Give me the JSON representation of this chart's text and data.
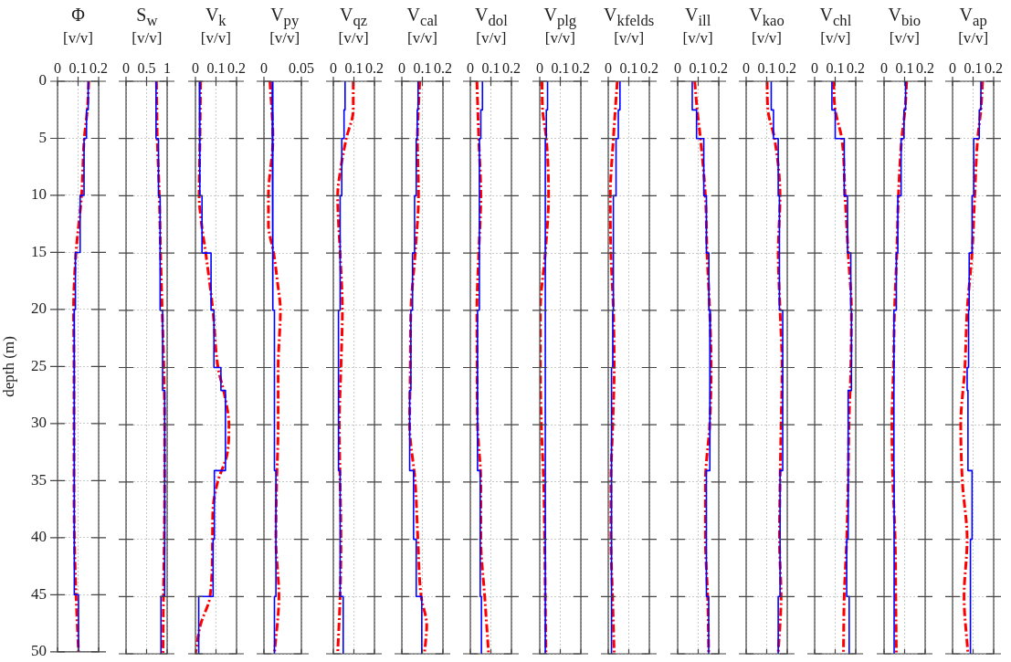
{
  "chart_data": [
    {
      "type": "line",
      "title": "Φ",
      "xlabel": "[v/v]",
      "ylabel": "depth (m)",
      "xlim": [
        0,
        0.2
      ],
      "xticks": [
        0,
        0.1,
        0.2
      ],
      "ylim": [
        50,
        0
      ],
      "yticks": [
        0,
        5,
        10,
        15,
        20,
        25,
        30,
        35,
        40,
        45,
        50
      ],
      "grid": true,
      "series": [
        {
          "type": "line",
          "color": "#0000ff",
          "line_style": "solid",
          "x": [
            0.149,
            0.149,
            0.141,
            0.141,
            0.129,
            0.129,
            0.11,
            0.11,
            0.087,
            0.087,
            0.081,
            0.081,
            0.081,
            0.081,
            0.081,
            0.081,
            0.081,
            0.081,
            0.084,
            0.084,
            0.102,
            0.102
          ],
          "values": [
            0,
            2.5,
            2.5,
            5,
            5,
            10,
            10,
            15,
            15,
            20,
            20,
            25,
            25,
            27,
            27,
            34,
            34,
            40,
            40,
            45,
            45,
            50
          ]
        },
        {
          "type": "line",
          "color": "#ff0000",
          "line_style": "dashed",
          "x": [
            0.152,
            0.145,
            0.13,
            0.117,
            0.09,
            0.078,
            0.08,
            0.08,
            0.08,
            0.082,
            0.09,
            0.102
          ],
          "values": [
            0,
            2.5,
            5,
            10,
            15,
            20,
            25,
            30,
            35,
            40,
            45,
            50
          ]
        }
      ]
    },
    {
      "type": "line",
      "title": "S$_{w}$",
      "xlabel": "[v/v]",
      "xlim": [
        0,
        1
      ],
      "xticks": [
        0,
        0.5,
        1
      ],
      "ylim": [
        50,
        0
      ],
      "yticks": [
        0,
        5,
        10,
        15,
        20,
        25,
        30,
        35,
        40,
        45,
        50
      ],
      "grid": true,
      "tick_labels": "x",
      "series": [
        {
          "type": "line",
          "color": "#0000ff",
          "line_style": "solid",
          "x": [
            0.73,
            0.73,
            0.73,
            0.73,
            0.79,
            0.79,
            0.83,
            0.83,
            0.83,
            0.83,
            0.89,
            0.89,
            0.89,
            0.89,
            0.94,
            0.94,
            0.94,
            0.94,
            0.94,
            0.94,
            0.85,
            0.85
          ],
          "values": [
            0,
            2.5,
            2.5,
            5,
            5,
            10,
            10,
            15,
            15,
            20,
            20,
            25,
            25,
            27,
            27,
            34,
            34,
            40,
            40,
            45,
            45,
            50
          ]
        },
        {
          "type": "line",
          "color": "#ff0000",
          "line_style": "dashed",
          "x": [
            0.74,
            0.75,
            0.76,
            0.81,
            0.84,
            0.88,
            0.92,
            0.94,
            0.94,
            0.93,
            0.91,
            0.9
          ],
          "values": [
            0,
            2.5,
            5,
            10,
            15,
            20,
            25,
            30,
            35,
            40,
            45,
            50
          ]
        }
      ]
    },
    {
      "type": "line",
      "title": "V$_{k}$",
      "xlabel": "[v/v]",
      "xlim": [
        0,
        0.2
      ],
      "xticks": [
        0,
        0.1,
        0.2
      ],
      "ylim": [
        50,
        0
      ],
      "yticks": [
        0,
        5,
        10,
        15,
        20,
        25,
        30,
        35,
        40,
        45,
        50
      ],
      "grid": true,
      "tick_labels": "x",
      "series": [
        {
          "type": "line",
          "color": "#0000ff",
          "line_style": "solid",
          "x": [
            0.019,
            0.019,
            0.022,
            0.022,
            0.022,
            0.022,
            0.032,
            0.032,
            0.076,
            0.076,
            0.09,
            0.09,
            0.124,
            0.124,
            0.146,
            0.146,
            0.092,
            0.092,
            0.086,
            0.086,
            0.016,
            0.016
          ],
          "values": [
            0,
            2.5,
            2.5,
            5,
            5,
            10,
            10,
            15,
            15,
            20,
            20,
            25,
            25,
            27,
            27,
            34,
            34,
            40,
            40,
            45,
            45,
            50
          ]
        },
        {
          "type": "line",
          "color": "#ff0000",
          "line_style": "dashed",
          "x": [
            0.025,
            0.022,
            0.018,
            0.03,
            0.05,
            0.085,
            0.11,
            0.143,
            0.163,
            0.155,
            0.108,
            0.085,
            0.083,
            0.071,
            0.024,
            0.0
          ],
          "values": [
            0,
            5,
            10,
            12.5,
            15,
            20,
            25,
            27.5,
            30,
            32.5,
            35,
            37.5,
            40,
            45,
            47.5,
            50
          ]
        }
      ]
    },
    {
      "type": "line",
      "title": "V$_{py}$",
      "xlabel": "[v/v]",
      "xlim": [
        0,
        0.05
      ],
      "xticks": [
        0,
        0.05
      ],
      "ylim": [
        50,
        0
      ],
      "yticks": [
        0,
        5,
        10,
        15,
        20,
        25,
        30,
        35,
        40,
        45,
        50
      ],
      "grid": true,
      "tick_labels": "x",
      "series": [
        {
          "type": "line",
          "color": "#0000ff",
          "line_style": "solid",
          "x": [
            0.011,
            0.011,
            0.012,
            0.012,
            0.012,
            0.012,
            0.012,
            0.012,
            0.012,
            0.012,
            0.014,
            0.014,
            0.014,
            0.014,
            0.014,
            0.014,
            0.016,
            0.016,
            0.016,
            0.016,
            0.014,
            0.014
          ],
          "values": [
            0,
            2.5,
            2.5,
            5,
            5,
            10,
            10,
            15,
            15,
            20,
            20,
            25,
            25,
            27,
            27,
            34,
            34,
            40,
            40,
            45,
            45,
            50
          ]
        },
        {
          "type": "line",
          "color": "#ff0000",
          "line_style": "dashed",
          "x": [
            0.008,
            0.012,
            0.006,
            0.006,
            0.013,
            0.018,
            0.022,
            0.019,
            0.019,
            0.017,
            0.016,
            0.02,
            0.014
          ],
          "values": [
            0,
            5,
            10,
            12.5,
            15,
            17.5,
            20,
            25,
            30,
            35,
            40,
            45,
            50
          ]
        }
      ]
    },
    {
      "type": "line",
      "title": "V$_{qz}$",
      "xlabel": "[v/v]",
      "xlim": [
        0,
        0.2
      ],
      "xticks": [
        0,
        0.1,
        0.2
      ],
      "ylim": [
        50,
        0
      ],
      "yticks": [
        0,
        5,
        10,
        15,
        20,
        25,
        30,
        35,
        40,
        45,
        50
      ],
      "grid": true,
      "tick_labels": "x",
      "series": [
        {
          "type": "line",
          "color": "#0000ff",
          "line_style": "solid",
          "x": [
            0.057,
            0.057,
            0.052,
            0.052,
            0.041,
            0.041,
            0.033,
            0.033,
            0.033,
            0.033,
            0.025,
            0.025,
            0.025,
            0.025,
            0.025,
            0.025,
            0.033,
            0.033,
            0.033,
            0.033,
            0.048,
            0.048
          ],
          "values": [
            0,
            2.5,
            2.5,
            5,
            5,
            10,
            10,
            15,
            15,
            20,
            20,
            25,
            25,
            27,
            27,
            34,
            34,
            40,
            40,
            45,
            45,
            50
          ]
        },
        {
          "type": "line",
          "color": "#ff0000",
          "line_style": "dashed",
          "x": [
            0.097,
            0.097,
            0.063,
            0.037,
            0.021,
            0.033,
            0.044,
            0.037,
            0.029,
            0.033,
            0.037,
            0.033,
            0.021
          ],
          "values": [
            0,
            2.5,
            5,
            7.5,
            10,
            15,
            20,
            25,
            30,
            35,
            40,
            45,
            50
          ]
        }
      ]
    },
    {
      "type": "line",
      "title": "V$_{cal}$",
      "xlabel": "[v/v]",
      "xlim": [
        0,
        0.2
      ],
      "xticks": [
        0,
        0.1,
        0.2
      ],
      "ylim": [
        50,
        0
      ],
      "yticks": [
        0,
        5,
        10,
        15,
        20,
        25,
        30,
        35,
        40,
        45,
        50
      ],
      "grid": true,
      "tick_labels": "x",
      "series": [
        {
          "type": "line",
          "color": "#0000ff",
          "line_style": "solid",
          "x": [
            0.079,
            0.079,
            0.075,
            0.075,
            0.07,
            0.07,
            0.062,
            0.062,
            0.052,
            0.052,
            0.044,
            0.044,
            0.038,
            0.038,
            0.057,
            0.057,
            0.07,
            0.07,
            0.097,
            0.097
          ],
          "values": [
            0,
            2.5,
            2.5,
            5,
            5,
            10,
            10,
            15,
            15,
            20,
            20,
            27,
            27,
            34,
            34,
            40,
            40,
            45,
            45,
            50
          ]
        },
        {
          "type": "line",
          "color": "#ff0000",
          "line_style": "dashed",
          "x": [
            0.087,
            0.076,
            0.081,
            0.065,
            0.044,
            0.041,
            0.038,
            0.065,
            0.078,
            0.094,
            0.121,
            0.11
          ],
          "values": [
            0,
            5,
            10,
            15,
            20,
            25,
            30,
            35,
            40,
            45,
            47.5,
            50
          ]
        }
      ]
    },
    {
      "type": "line",
      "title": "V$_{dol}$",
      "xlabel": "[v/v]",
      "xlim": [
        0,
        0.2
      ],
      "xticks": [
        0,
        0.1,
        0.2
      ],
      "ylim": [
        50,
        0
      ],
      "yticks": [
        0,
        5,
        10,
        15,
        20,
        25,
        30,
        35,
        40,
        45,
        50
      ],
      "grid": true,
      "tick_labels": "x",
      "series": [
        {
          "type": "line",
          "color": "#0000ff",
          "line_style": "solid",
          "x": [
            0.059,
            0.059,
            0.051,
            0.051,
            0.044,
            0.044,
            0.044,
            0.044,
            0.044,
            0.044,
            0.035,
            0.035,
            0.035,
            0.035,
            0.035,
            0.035,
            0.048,
            0.048,
            0.048,
            0.048,
            0.054,
            0.054
          ],
          "values": [
            0,
            2.5,
            2.5,
            5,
            5,
            10,
            10,
            15,
            15,
            20,
            20,
            25,
            25,
            27,
            27,
            34,
            34,
            40,
            40,
            45,
            45,
            50
          ]
        },
        {
          "type": "line",
          "color": "#ff0000",
          "line_style": "dashed",
          "x": [
            0.032,
            0.041,
            0.051,
            0.041,
            0.032,
            0.033,
            0.035,
            0.051,
            0.051,
            0.07,
            0.089
          ],
          "values": [
            0,
            5,
            10,
            15,
            20,
            25,
            30,
            35,
            40,
            45,
            50
          ]
        }
      ]
    },
    {
      "type": "line",
      "title": "V$_{plg}$",
      "xlabel": "[v/v]",
      "xlim": [
        0,
        0.2
      ],
      "xticks": [
        0,
        0.1,
        0.2
      ],
      "ylim": [
        50,
        0
      ],
      "yticks": [
        0,
        5,
        10,
        15,
        20,
        25,
        30,
        35,
        40,
        45,
        50
      ],
      "grid": true,
      "tick_labels": "x",
      "series": [
        {
          "type": "line",
          "color": "#0000ff",
          "line_style": "solid",
          "x": [
            0.038,
            0.038,
            0.032,
            0.032,
            0.027,
            0.027,
            0.027,
            0.027,
            0.027,
            0.027,
            0.027,
            0.027,
            0.027,
            0.027,
            0.027,
            0.027,
            0.027,
            0.027,
            0.027,
            0.027,
            0.027,
            0.027
          ],
          "values": [
            0,
            2.5,
            2.5,
            5,
            5,
            10,
            10,
            15,
            15,
            20,
            20,
            25,
            25,
            27,
            27,
            34,
            34,
            40,
            40,
            45,
            45,
            50
          ]
        },
        {
          "type": "line",
          "color": "#ff0000",
          "line_style": "dashed",
          "x": [
            0.011,
            0.014,
            0.032,
            0.043,
            0.027,
            0.003,
            0.003,
            0.008,
            0.019,
            0.024,
            0.027,
            0.03
          ],
          "values": [
            0,
            2.5,
            5,
            10,
            15,
            20,
            25,
            30,
            35,
            40,
            45,
            50
          ]
        }
      ]
    },
    {
      "type": "line",
      "title": "V$_{kfelds}$",
      "xlabel": "[v/v]",
      "xlim": [
        0,
        0.2
      ],
      "xticks": [
        0,
        0.1,
        0.2
      ],
      "ylim": [
        50,
        0
      ],
      "yticks": [
        0,
        5,
        10,
        15,
        20,
        25,
        30,
        35,
        40,
        45,
        50
      ],
      "grid": true,
      "tick_labels": "x",
      "series": [
        {
          "type": "line",
          "color": "#0000ff",
          "line_style": "solid",
          "x": [
            0.057,
            0.057,
            0.049,
            0.049,
            0.038,
            0.038,
            0.025,
            0.025,
            0.025,
            0.025,
            0.022,
            0.022,
            0.016,
            0.016,
            0.016,
            0.016,
            0.016,
            0.016,
            0.016,
            0.016,
            0.016,
            0.016
          ],
          "values": [
            0,
            2.5,
            2.5,
            5,
            5,
            10,
            10,
            15,
            15,
            20,
            20,
            25,
            25,
            27,
            27,
            34,
            34,
            40,
            40,
            45,
            45,
            50
          ]
        },
        {
          "type": "line",
          "color": "#ff0000",
          "line_style": "dashed",
          "x": [
            0.044,
            0.025,
            0.01,
            0.013,
            0.025,
            0.029,
            0.022,
            0.013,
            0.013,
            0.021,
            0.029
          ],
          "values": [
            0,
            5,
            10,
            15,
            20,
            25,
            30,
            35,
            40,
            45,
            50
          ]
        }
      ]
    },
    {
      "type": "line",
      "title": "V$_{ill}$",
      "xlabel": "[v/v]",
      "xlim": [
        0,
        0.2
      ],
      "xticks": [
        0,
        0.1,
        0.2
      ],
      "ylim": [
        50,
        0
      ],
      "yticks": [
        0,
        5,
        10,
        15,
        20,
        25,
        30,
        35,
        40,
        45,
        50
      ],
      "grid": true,
      "tick_labels": "x",
      "series": [
        {
          "type": "line",
          "color": "#0000ff",
          "line_style": "solid",
          "x": [
            0.071,
            0.071,
            0.092,
            0.092,
            0.127,
            0.127,
            0.14,
            0.14,
            0.152,
            0.152,
            0.159,
            0.159,
            0.156,
            0.156,
            0.156,
            0.156,
            0.14,
            0.14,
            0.14,
            0.14,
            0.151,
            0.151
          ],
          "values": [
            0,
            2.5,
            2.5,
            5,
            5,
            10,
            10,
            15,
            15,
            20,
            20,
            25,
            25,
            27,
            27,
            34,
            34,
            40,
            40,
            45,
            45,
            50
          ]
        },
        {
          "type": "line",
          "color": "#ff0000",
          "line_style": "dashed",
          "x": [
            0.083,
            0.095,
            0.111,
            0.135,
            0.143,
            0.156,
            0.163,
            0.156,
            0.135,
            0.135,
            0.146,
            0.151
          ],
          "values": [
            0,
            2.5,
            5,
            10,
            15,
            20,
            25,
            30,
            35,
            40,
            45,
            50
          ]
        }
      ]
    },
    {
      "type": "line",
      "title": "V$_{kao}$",
      "xlabel": "[v/v]",
      "xlim": [
        0,
        0.2
      ],
      "xticks": [
        0,
        0.1,
        0.2
      ],
      "ylim": [
        50,
        0
      ],
      "yticks": [
        0,
        5,
        10,
        15,
        20,
        25,
        30,
        35,
        40,
        45,
        50
      ],
      "grid": true,
      "tick_labels": "x",
      "series": [
        {
          "type": "line",
          "color": "#0000ff",
          "line_style": "solid",
          "x": [
            0.122,
            0.122,
            0.133,
            0.133,
            0.156,
            0.156,
            0.162,
            0.162,
            0.162,
            0.162,
            0.178,
            0.178,
            0.178,
            0.178,
            0.178,
            0.178,
            0.165,
            0.165,
            0.165,
            0.165,
            0.156,
            0.156
          ],
          "values": [
            0,
            2.5,
            2.5,
            5,
            5,
            10,
            10,
            15,
            15,
            20,
            20,
            25,
            25,
            27,
            27,
            34,
            34,
            40,
            40,
            45,
            45,
            50
          ]
        },
        {
          "type": "line",
          "color": "#ff0000",
          "line_style": "dashed",
          "x": [
            0.102,
            0.106,
            0.138,
            0.165,
            0.156,
            0.165,
            0.175,
            0.17,
            0.165,
            0.162,
            0.17,
            0.156
          ],
          "values": [
            0,
            2.5,
            5,
            10,
            15,
            20,
            25,
            30,
            35,
            40,
            45,
            50
          ]
        }
      ]
    },
    {
      "type": "line",
      "title": "V$_{chl}$",
      "xlabel": "[v/v]",
      "xlim": [
        0,
        0.2
      ],
      "xticks": [
        0,
        0.1,
        0.2
      ],
      "ylim": [
        50,
        0
      ],
      "yticks": [
        0,
        5,
        10,
        15,
        20,
        25,
        30,
        35,
        40,
        45,
        50
      ],
      "grid": true,
      "tick_labels": "x",
      "series": [
        {
          "type": "line",
          "color": "#0000ff",
          "line_style": "solid",
          "x": [
            0.084,
            0.084,
            0.1,
            0.1,
            0.144,
            0.144,
            0.16,
            0.16,
            0.176,
            0.176,
            0.179,
            0.179,
            0.179,
            0.179,
            0.163,
            0.163,
            0.163,
            0.163,
            0.156,
            0.156,
            0.168,
            0.168
          ],
          "values": [
            0,
            2.5,
            2.5,
            5,
            5,
            10,
            10,
            15,
            15,
            20,
            20,
            25,
            25,
            27,
            27,
            34,
            34,
            40,
            40,
            45,
            45,
            50
          ]
        },
        {
          "type": "line",
          "color": "#ff0000",
          "line_style": "dashed",
          "x": [
            0.092,
            0.1,
            0.132,
            0.148,
            0.163,
            0.179,
            0.176,
            0.167,
            0.163,
            0.156,
            0.144,
            0.14
          ],
          "values": [
            0,
            2.5,
            5,
            10,
            15,
            20,
            25,
            30,
            35,
            40,
            45,
            50
          ]
        }
      ]
    },
    {
      "type": "line",
      "title": "V$_{bio}$",
      "xlabel": "[v/v]",
      "xlim": [
        0,
        0.2
      ],
      "xticks": [
        0,
        0.1,
        0.2
      ],
      "ylim": [
        50,
        0
      ],
      "yticks": [
        0,
        5,
        10,
        15,
        20,
        25,
        30,
        35,
        40,
        45,
        50
      ],
      "grid": true,
      "tick_labels": "x",
      "series": [
        {
          "type": "line",
          "color": "#0000ff",
          "line_style": "solid",
          "x": [
            0.105,
            0.105,
            0.097,
            0.097,
            0.083,
            0.083,
            0.067,
            0.067,
            0.06,
            0.06,
            0.048,
            0.048,
            0.048,
            0.048,
            0.048,
            0.048,
            0.049,
            0.049,
            0.049,
            0.049,
            0.049,
            0.049
          ],
          "values": [
            0,
            2.5,
            2.5,
            5,
            5,
            10,
            10,
            15,
            15,
            20,
            20,
            25,
            25,
            27,
            27,
            34,
            34,
            40,
            40,
            45,
            45,
            50
          ]
        },
        {
          "type": "line",
          "color": "#ff0000",
          "line_style": "dashed",
          "x": [
            0.11,
            0.102,
            0.086,
            0.07,
            0.062,
            0.051,
            0.046,
            0.038,
            0.043,
            0.054,
            0.057,
            0.06
          ],
          "values": [
            0,
            2.5,
            5,
            10,
            15,
            20,
            25,
            30,
            35,
            40,
            45,
            50
          ]
        }
      ]
    },
    {
      "type": "line",
      "title": "V$_{ap}$",
      "xlabel": "[v/v]",
      "xlim": [
        0,
        0.2
      ],
      "xticks": [
        0,
        0.1,
        0.2
      ],
      "ylim": [
        50,
        0
      ],
      "yticks": [
        0,
        5,
        10,
        15,
        20,
        25,
        30,
        35,
        40,
        45,
        50
      ],
      "grid": true,
      "tick_labels": "x",
      "series": [
        {
          "type": "line",
          "color": "#0000ff",
          "line_style": "solid",
          "x": [
            0.138,
            0.138,
            0.13,
            0.13,
            0.103,
            0.103,
            0.095,
            0.095,
            0.081,
            0.081,
            0.078,
            0.078,
            0.071,
            0.071,
            0.075,
            0.075,
            0.095,
            0.095,
            0.087,
            0.087
          ],
          "values": [
            0,
            2.5,
            2.5,
            5,
            5,
            10,
            10,
            15,
            15,
            20,
            20,
            25,
            25,
            27,
            27,
            34,
            34,
            40,
            40,
            50
          ]
        },
        {
          "type": "line",
          "color": "#ff0000",
          "line_style": "dashed",
          "x": [
            0.146,
            0.138,
            0.122,
            0.108,
            0.095,
            0.071,
            0.06,
            0.04,
            0.048,
            0.071,
            0.056,
            0.075
          ],
          "values": [
            0,
            2.5,
            5,
            10,
            15,
            20,
            25,
            30,
            35,
            40,
            45,
            50
          ]
        }
      ]
    }
  ]
}
